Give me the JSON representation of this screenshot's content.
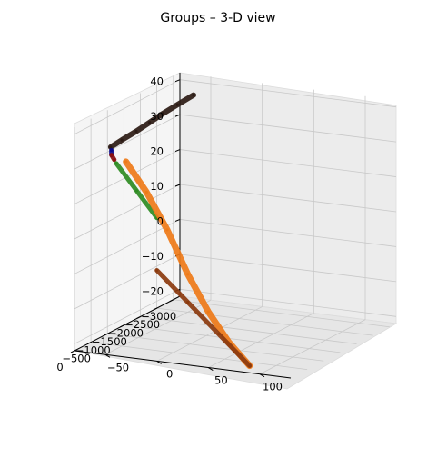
{
  "chart_data": {
    "type": "surface3d",
    "title": "Groups – 3-D view",
    "x_axis": {
      "label": "",
      "range": [
        -3200,
        0
      ],
      "ticks": [
        -3000,
        -2500,
        -2000,
        -1500,
        -1000,
        -500,
        0
      ],
      "tick_labels": [
        "−3000",
        "−2500",
        "−2000",
        "−1500",
        "−1000",
        "−500",
        "0"
      ]
    },
    "y_axis": {
      "label": "",
      "range": [
        -80,
        130
      ],
      "ticks": [
        -50,
        0,
        50,
        100
      ],
      "tick_labels": [
        "−50",
        "0",
        "50",
        "100"
      ]
    },
    "z_axis": {
      "label": "",
      "range": [
        -22,
        42
      ],
      "ticks": [
        -20,
        -10,
        0,
        10,
        20,
        30,
        40
      ],
      "tick_labels": [
        "−20",
        "−10",
        "0",
        "10",
        "20",
        "30",
        "40"
      ]
    },
    "grid": true,
    "series": [
      {
        "color": "#2b1a14",
        "description": "long ribbon along x at top",
        "points": [
          [
            -3050,
            -62,
            37
          ],
          [
            -2500,
            -60,
            37
          ],
          [
            -2000,
            -58,
            37
          ],
          [
            -1500,
            -55,
            37
          ],
          [
            -1000,
            -52,
            37
          ],
          [
            -500,
            -50,
            37
          ],
          [
            -100,
            -48,
            37
          ]
        ]
      },
      {
        "color": "#0a0a8a",
        "points": [
          [
            -120,
            -48,
            36
          ],
          [
            -60,
            -46,
            35
          ]
        ]
      },
      {
        "color": "#8a0e0e",
        "points": [
          [
            -60,
            -46,
            35
          ],
          [
            -20,
            -42,
            34
          ]
        ]
      },
      {
        "color": "#2e8b22",
        "points": [
          [
            -20,
            -40,
            33
          ],
          [
            -10,
            -20,
            26
          ],
          [
            0,
            0,
            19
          ]
        ]
      },
      {
        "color": "#ee7a18",
        "points": [
          [
            0,
            -30,
            34
          ],
          [
            0,
            -10,
            26
          ],
          [
            0,
            10,
            16
          ],
          [
            0,
            30,
            4
          ],
          [
            0,
            50,
            -6
          ],
          [
            0,
            70,
            -14
          ],
          [
            0,
            90,
            -20
          ]
        ]
      },
      {
        "color": "#8b3a0e",
        "description": "two rough horizontal patches",
        "points": [
          [
            0,
            0,
            4
          ],
          [
            0,
            30,
            -4
          ],
          [
            0,
            60,
            -12
          ],
          [
            0,
            90,
            -20
          ]
        ]
      }
    ]
  }
}
